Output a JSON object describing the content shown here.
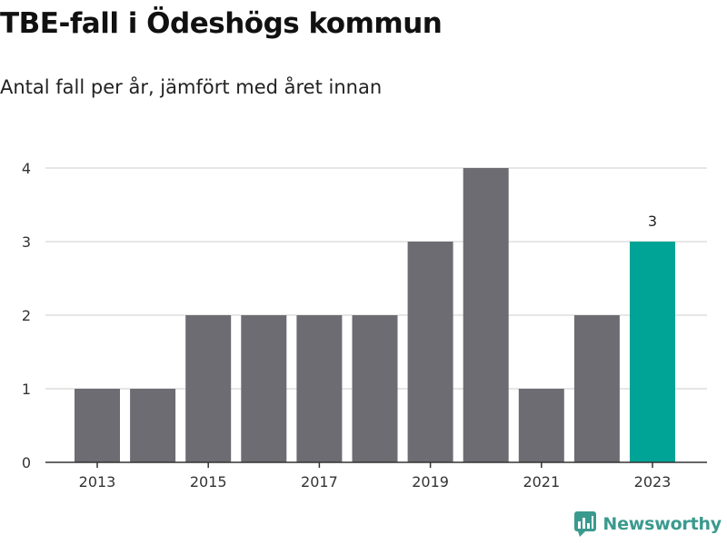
{
  "header": {
    "title": "TBE-fall i Ödeshögs kommun",
    "subtitle": "Antal fall per år, jämfört med året innan"
  },
  "brand": {
    "name": "Newsworthy",
    "logo_icon": "newsworthy-chart-icon",
    "color": "#3a9a8e"
  },
  "chart_data": {
    "type": "bar",
    "categories": [
      "2013",
      "2014",
      "2015",
      "2016",
      "2017",
      "2018",
      "2019",
      "2020",
      "2021",
      "2022",
      "2023"
    ],
    "values": [
      1,
      1,
      2,
      2,
      2,
      2,
      3,
      4,
      1,
      2,
      3
    ],
    "x_tick_labels": [
      "2013",
      "2015",
      "2017",
      "2019",
      "2021",
      "2023"
    ],
    "y_ticks": [
      0,
      1,
      2,
      3,
      4
    ],
    "ylim": [
      0,
      4
    ],
    "grid": true,
    "data_labels": [
      {
        "category": "2023",
        "text": "3"
      }
    ],
    "highlight": "2023",
    "colors": {
      "bar": "#6d6c72",
      "highlight": "#00a496",
      "grid": "#dddddd",
      "axis": "#333333"
    }
  }
}
